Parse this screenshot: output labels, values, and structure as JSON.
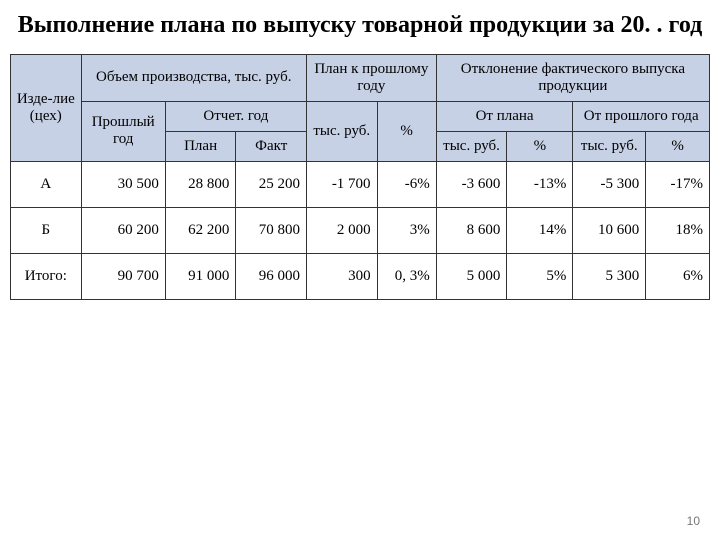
{
  "title": "Выполнение плана по выпуску товарной продукции за 20. . год",
  "pageNumber": "10",
  "headers": {
    "item": "Изде-лие (цех)",
    "volume": "Объем производства, тыс. руб.",
    "planPrev": "План к прошлому году",
    "deviation": "Отклонение фактического выпуска продукции",
    "prevYear": "Прошлый год",
    "reportYear": "Отчет. год",
    "plan": "План",
    "fact": "Факт",
    "tRub": "тыс. руб.",
    "pct": "%",
    "fromPlan": "От плана",
    "fromPrev": "От прошлого года"
  },
  "rows": [
    {
      "name": "A",
      "prev": "30 500",
      "plan": "28 800",
      "fact": "25 200",
      "d1t": "-1 700",
      "d1p": "-6%",
      "d2t": "-3 600",
      "d2p": "-13%",
      "d3t": "-5 300",
      "d3p": "-17%"
    },
    {
      "name": "Б",
      "prev": "60 200",
      "plan": "62 200",
      "fact": "70 800",
      "d1t": "2 000",
      "d1p": "3%",
      "d2t": "8 600",
      "d2p": "14%",
      "d3t": "10 600",
      "d3p": "18%"
    },
    {
      "name": "Итого:",
      "prev": "90 700",
      "plan": "91 000",
      "fact": "96 000",
      "d1t": "300",
      "d1p": "0, 3%",
      "d2t": "5 000",
      "d2p": "5%",
      "d3t": "5 300",
      "d3p": "6%"
    }
  ],
  "style": {
    "headerBg": "#c7d1e5",
    "borderColor": "#333333",
    "fontFamily": "Times New Roman",
    "titleFontSize": 24
  }
}
